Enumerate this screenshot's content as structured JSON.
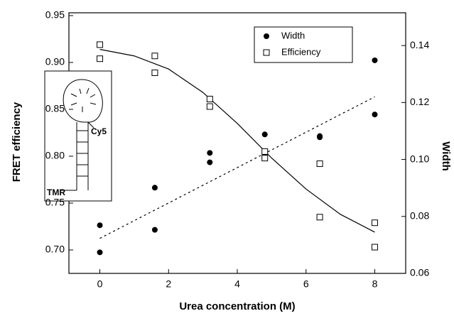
{
  "chart_data": {
    "type": "scatter",
    "x_label": "Urea concentration (M)",
    "y_label": "FRET efficiency",
    "y2_label": "Width",
    "xlim": [
      -0.9,
      8.9
    ],
    "xticks": [
      0,
      2,
      4,
      6,
      8
    ],
    "ylim": [
      0.675,
      0.953
    ],
    "yticks": [
      {
        "value": 0.7,
        "label": "0.70"
      },
      {
        "value": 0.75,
        "label": "0.75"
      },
      {
        "value": 0.8,
        "label": "0.80"
      },
      {
        "value": 0.85,
        "label": "0.85"
      },
      {
        "value": 0.9,
        "label": "0.90"
      },
      {
        "value": 0.95,
        "label": "0.95"
      }
    ],
    "y2lim": [
      0.06,
      0.1515
    ],
    "y2ticks": [
      {
        "value": 0.06,
        "label": "0.06"
      },
      {
        "value": 0.08,
        "label": "0.08"
      },
      {
        "value": 0.1,
        "label": "0.10"
      },
      {
        "value": 0.12,
        "label": "0.12"
      },
      {
        "value": 0.14,
        "label": "0.14"
      }
    ],
    "legend": "top-right",
    "series": [
      {
        "name": "Width",
        "axis": "y2",
        "marker": "circle",
        "color": "#000",
        "x": [
          0,
          0,
          1.6,
          1.6,
          3.2,
          3.2,
          4.8,
          4.8,
          6.4,
          6.4,
          8,
          8
        ],
        "values": [
          0.0769,
          0.0674,
          0.0901,
          0.0753,
          0.1023,
          0.099,
          0.1088,
          0.1023,
          0.1082,
          0.1078,
          0.1348,
          0.1158
        ]
      },
      {
        "name": "Efficiency",
        "marker": "square",
        "color": "#000",
        "x": [
          0,
          0,
          1.6,
          1.6,
          3.2,
          3.2,
          4.8,
          4.8,
          6.4,
          6.4,
          8,
          8
        ],
        "values": [
          0.919,
          0.904,
          0.907,
          0.889,
          0.861,
          0.853,
          0.805,
          0.798,
          0.792,
          0.735,
          0.729,
          0.703
        ]
      }
    ],
    "fits": [
      {
        "axis": "y",
        "dash": false,
        "x": [
          0,
          1,
          2,
          3,
          4,
          5,
          6,
          7,
          8
        ],
        "values": [
          0.914,
          0.907,
          0.893,
          0.868,
          0.835,
          0.798,
          0.765,
          0.738,
          0.719
        ]
      },
      {
        "axis": "y2",
        "dash": true,
        "x": [
          0,
          8
        ],
        "values": [
          0.0723,
          0.122
        ]
      }
    ],
    "inset_labels": [
      "Cy5",
      "TMR"
    ]
  }
}
